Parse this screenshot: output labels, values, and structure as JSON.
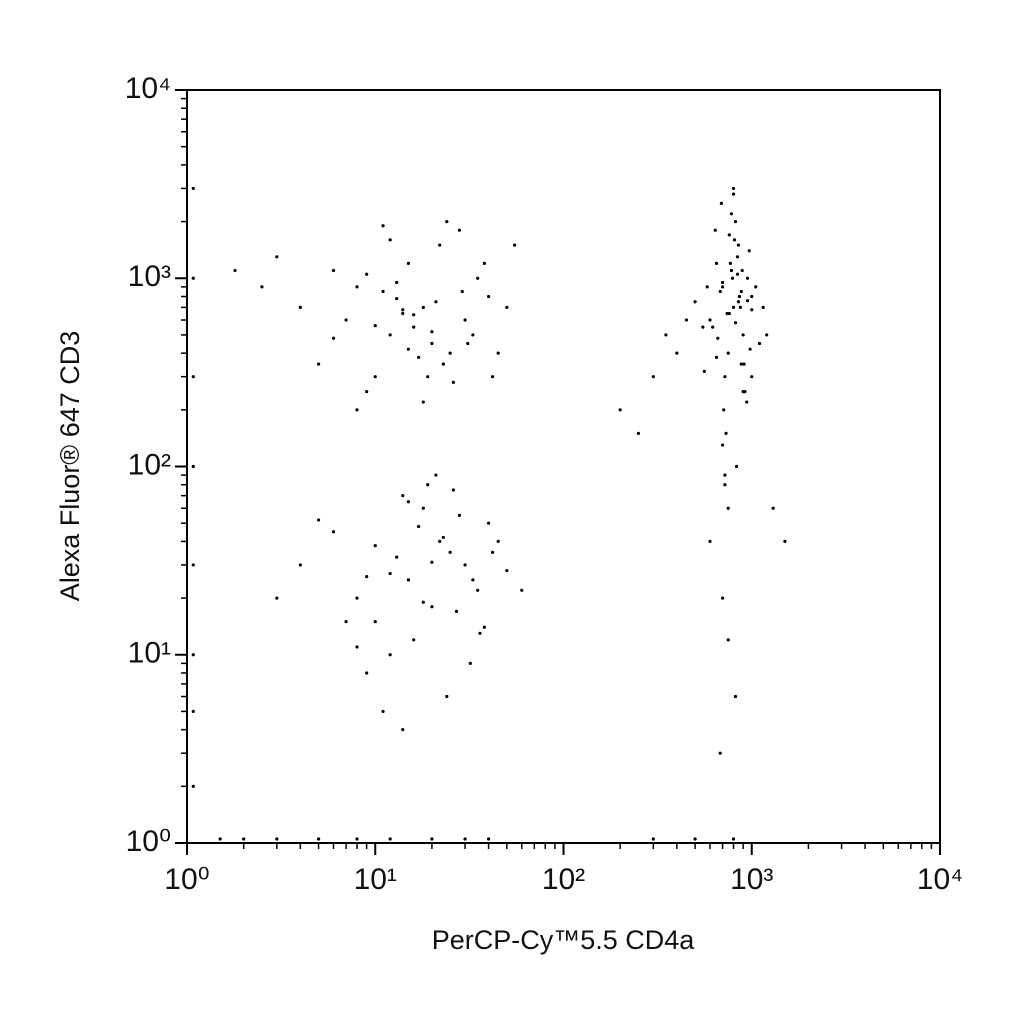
{
  "chart_data": {
    "type": "scatter",
    "x_label": "PerCP-Cy™5.5 CD4a",
    "y_label": "Alexa Fluor® 647 CD3",
    "log_x": true,
    "log_y": true,
    "color": "#000000",
    "xlim": [
      1,
      10000
    ],
    "ylim": [
      1,
      10000
    ],
    "xticks": [
      {
        "value": 1,
        "label": "10⁰"
      },
      {
        "value": 10,
        "label": "10¹"
      },
      {
        "value": 100,
        "label": "10²"
      },
      {
        "value": 1000,
        "label": "10³"
      },
      {
        "value": 10000,
        "label": "10⁴"
      }
    ],
    "yticks": [
      {
        "value": 1,
        "label": "10⁰"
      },
      {
        "value": 10,
        "label": "10¹"
      },
      {
        "value": 100,
        "label": "10²"
      },
      {
        "value": 1000,
        "label": "10³"
      },
      {
        "value": 10000,
        "label": "10⁴"
      }
    ],
    "xminorticks": [
      2,
      3,
      4,
      5,
      6,
      7,
      8,
      9,
      20,
      30,
      40,
      50,
      60,
      70,
      80,
      90,
      200,
      300,
      400,
      500,
      600,
      700,
      800,
      900,
      2000,
      3000,
      4000,
      5000,
      6000,
      7000,
      8000,
      9000
    ],
    "yminorticks": [
      2,
      3,
      4,
      5,
      6,
      7,
      8,
      9,
      20,
      30,
      40,
      50,
      60,
      70,
      80,
      90,
      200,
      300,
      400,
      500,
      600,
      700,
      800,
      900,
      2000,
      3000,
      4000,
      5000,
      6000,
      7000,
      8000,
      9000
    ],
    "x": [
      12,
      18,
      25,
      8,
      15,
      30,
      5,
      22,
      10,
      40,
      14,
      6,
      20,
      35,
      9,
      16,
      28,
      4,
      11,
      45,
      13,
      19,
      7,
      24,
      33,
      17,
      3,
      50,
      12,
      26,
      21,
      8,
      15,
      38,
      10,
      2.5,
      23,
      14,
      55,
      18,
      6,
      29,
      11,
      16,
      42,
      9,
      20,
      13,
      31,
      1.8,
      15,
      22,
      10,
      30,
      18,
      8,
      40,
      12,
      25,
      6,
      35,
      14,
      20,
      50,
      9,
      28,
      16,
      4,
      11,
      45,
      19,
      7,
      33,
      13,
      24,
      3,
      17,
      38,
      21,
      10,
      27,
      15,
      60,
      8,
      23,
      12,
      32,
      5,
      18,
      42,
      14,
      26,
      9,
      36,
      20,
      800,
      700,
      900,
      650,
      1000,
      750,
      850,
      600,
      950,
      720,
      820,
      500,
      1100,
      780,
      880,
      680,
      920,
      760,
      840,
      550,
      1050,
      710,
      870,
      640,
      980,
      790,
      450,
      1200,
      730,
      860,
      690,
      910,
      770,
      830,
      580,
      1000,
      740,
      810,
      660,
      940,
      400,
      1150,
      720,
      890,
      800,
      620,
      970,
      750,
      850,
      700,
      300,
      250,
      350,
      200,
      1300,
      1500,
      600,
      800,
      900,
      700,
      820,
      760,
      650,
      880,
      1000,
      780,
      720,
      840,
      560,
      950,
      700,
      750,
      820,
      680,
      1.5,
      2,
      3,
      5,
      8,
      12,
      20,
      30,
      40,
      300,
      500,
      800,
      1.08,
      1.08,
      1.08,
      1.08,
      1.08,
      1.08,
      1.08,
      1.08
    ],
    "y": [
      500,
      700,
      400,
      900,
      1200,
      600,
      350,
      1500,
      300,
      800,
      650,
      1100,
      450,
      1000,
      250,
      550,
      1800,
      700,
      850,
      400,
      950,
      300,
      600,
      2000,
      500,
      380,
      1300,
      700,
      1600,
      280,
      750,
      200,
      420,
      1200,
      560,
      900,
      350,
      680,
      1500,
      220,
      480,
      850,
      1900,
      640,
      300,
      1050,
      520,
      780,
      450,
      1100,
      25,
      40,
      15,
      30,
      60,
      20,
      50,
      10,
      35,
      45,
      22,
      70,
      18,
      28,
      8,
      55,
      12,
      30,
      5,
      40,
      80,
      15,
      25,
      33,
      6,
      20,
      48,
      14,
      90,
      38,
      17,
      65,
      22,
      11,
      42,
      27,
      9,
      52,
      19,
      35,
      4,
      75,
      26,
      13,
      31,
      700,
      900,
      500,
      1200,
      800,
      400,
      1500,
      600,
      1000,
      300,
      2000,
      750,
      450,
      1100,
      350,
      850,
      250,
      650,
      1300,
      550,
      900,
      200,
      700,
      1800,
      420,
      1000,
      600,
      500,
      150,
      800,
      2500,
      350,
      1200,
      100,
      900,
      300,
      650,
      1600,
      480,
      220,
      400,
      700,
      80,
      1100,
      3000,
      550,
      1400,
      60,
      750,
      130,
      300,
      150,
      500,
      200,
      60,
      40,
      40,
      2800,
      250,
      950,
      580,
      1700,
      380,
      850,
      680,
      2200,
      90,
      1050,
      320,
      760,
      20,
      12,
      6,
      3,
      1.05,
      1.05,
      1.05,
      1.05,
      1.05,
      1.05,
      1.05,
      1.05,
      1.05,
      1.05,
      1.05,
      1.05,
      2,
      5,
      10,
      30,
      100,
      300,
      1000,
      3000
    ]
  }
}
